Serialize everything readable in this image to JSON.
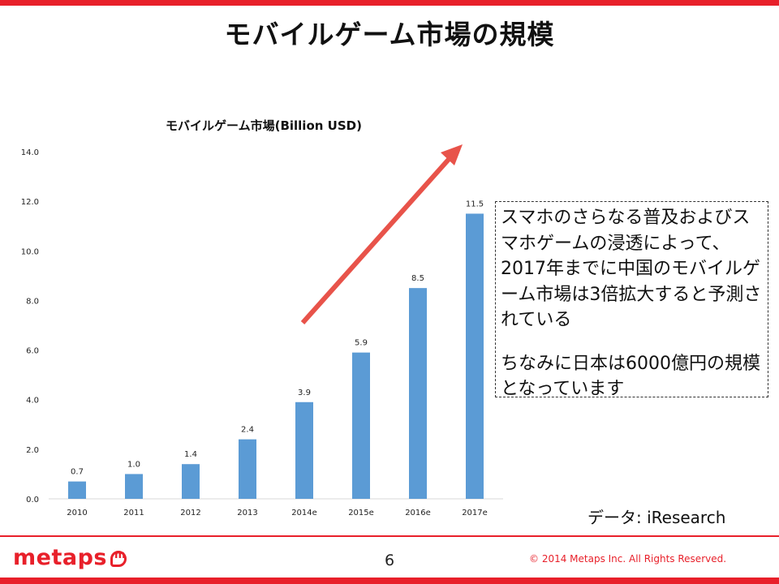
{
  "slide": {
    "title": "モバイルゲーム市場の規模",
    "page_number": "6",
    "copyright": "© 2014  Metaps Inc. All Rights Reserved.",
    "logo_text": "metaps",
    "source": "データ: iResearch"
  },
  "annotation": {
    "paragraph_1": "スマホのさらなる普及およびスマホゲームの浸透によって、2017年までに中国のモバイルゲーム市場は3倍拡大すると予測されている",
    "paragraph_2": "ちなみに日本は6000億円の規模となっています"
  },
  "colors": {
    "bar": "#5b9bd5",
    "arrow": "#e8534a",
    "brand_red": "#e8202a"
  },
  "chart_data": {
    "type": "bar",
    "title": "モバイルゲーム市場(Billion USD)",
    "categories": [
      "2010",
      "2011",
      "2012",
      "2013",
      "2014e",
      "2015e",
      "2016e",
      "2017e"
    ],
    "values": [
      0.7,
      1.0,
      1.4,
      2.4,
      3.9,
      5.9,
      8.5,
      11.5
    ],
    "data_labels": [
      "0.7",
      "1.0",
      "1.4",
      "2.4",
      "3.9",
      "5.9",
      "8.5",
      "11.5"
    ],
    "ylim": [
      0,
      14
    ],
    "yticks": [
      "0.0",
      "2.0",
      "4.0",
      "6.0",
      "8.0",
      "10.0",
      "12.0",
      "14.0"
    ],
    "grid": false,
    "legend": "none",
    "xlabel": "",
    "ylabel": ""
  }
}
